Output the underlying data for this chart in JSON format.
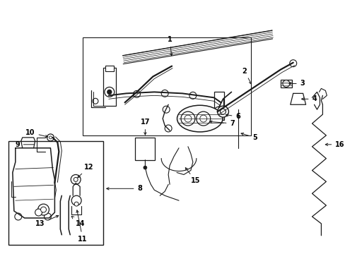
{
  "bg_color": "#ffffff",
  "line_color": "#1a1a1a",
  "label_color": "#000000",
  "figsize": [
    4.89,
    3.6
  ],
  "dpi": 100,
  "label_fs": 7.0,
  "lw_main": 1.0,
  "lw_thick": 1.6,
  "lw_thin": 0.6
}
